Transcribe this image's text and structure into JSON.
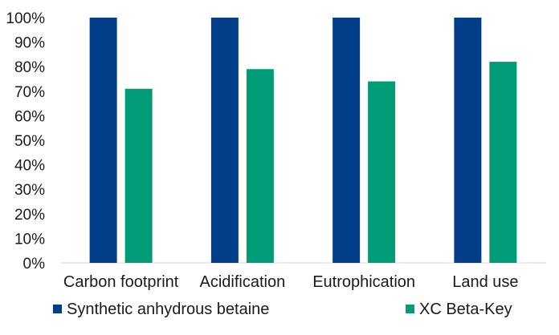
{
  "chart_data": {
    "type": "bar",
    "categories": [
      "Carbon footprint",
      "Acidification",
      "Eutrophication",
      "Land use"
    ],
    "series": [
      {
        "name": "Synthetic anhydrous betaine",
        "values": [
          100,
          100,
          100,
          100
        ],
        "color": "#003f87"
      },
      {
        "name": "XC Beta-Key",
        "values": [
          71,
          79,
          74,
          82
        ],
        "color": "#009b77"
      }
    ],
    "ylim": [
      0,
      100
    ],
    "yticks": [
      "0%",
      "10%",
      "20%",
      "30%",
      "40%",
      "50%",
      "60%",
      "70%",
      "80%",
      "90%",
      "100%"
    ],
    "grid": false,
    "legend": "bottom"
  }
}
